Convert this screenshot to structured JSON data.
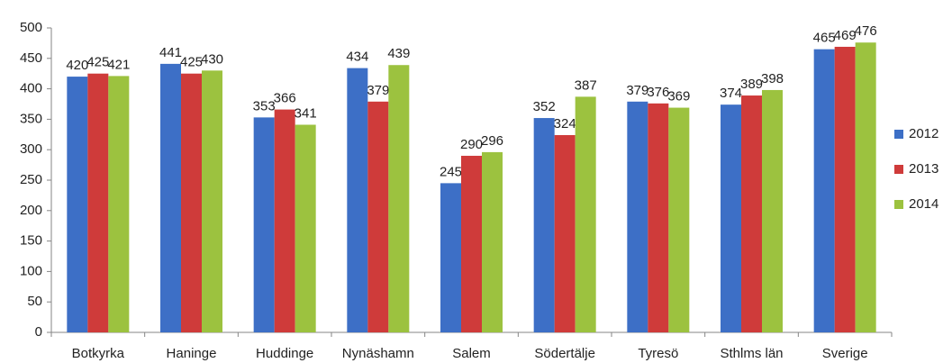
{
  "chart_data": {
    "type": "bar",
    "categories": [
      "Botkyrka",
      "Haninge",
      "Huddinge",
      "Nynäshamn",
      "Salem",
      "Södertälje",
      "Tyresö",
      "Sthlms län",
      "Sverige"
    ],
    "series": [
      {
        "name": "2012",
        "color": "#3d6fc6",
        "values": [
          420,
          441,
          353,
          434,
          245,
          352,
          379,
          374,
          465
        ]
      },
      {
        "name": "2013",
        "color": "#cf3b3a",
        "values": [
          425,
          425,
          366,
          379,
          290,
          324,
          376,
          389,
          469
        ]
      },
      {
        "name": "2014",
        "color": "#9cc23f",
        "values": [
          421,
          430,
          341,
          439,
          296,
          387,
          369,
          398,
          476
        ]
      }
    ],
    "ylim": [
      0,
      500
    ],
    "yticks": [
      0,
      50,
      100,
      150,
      200,
      250,
      300,
      350,
      400,
      450,
      500
    ],
    "grid": false,
    "legend": "right"
  }
}
